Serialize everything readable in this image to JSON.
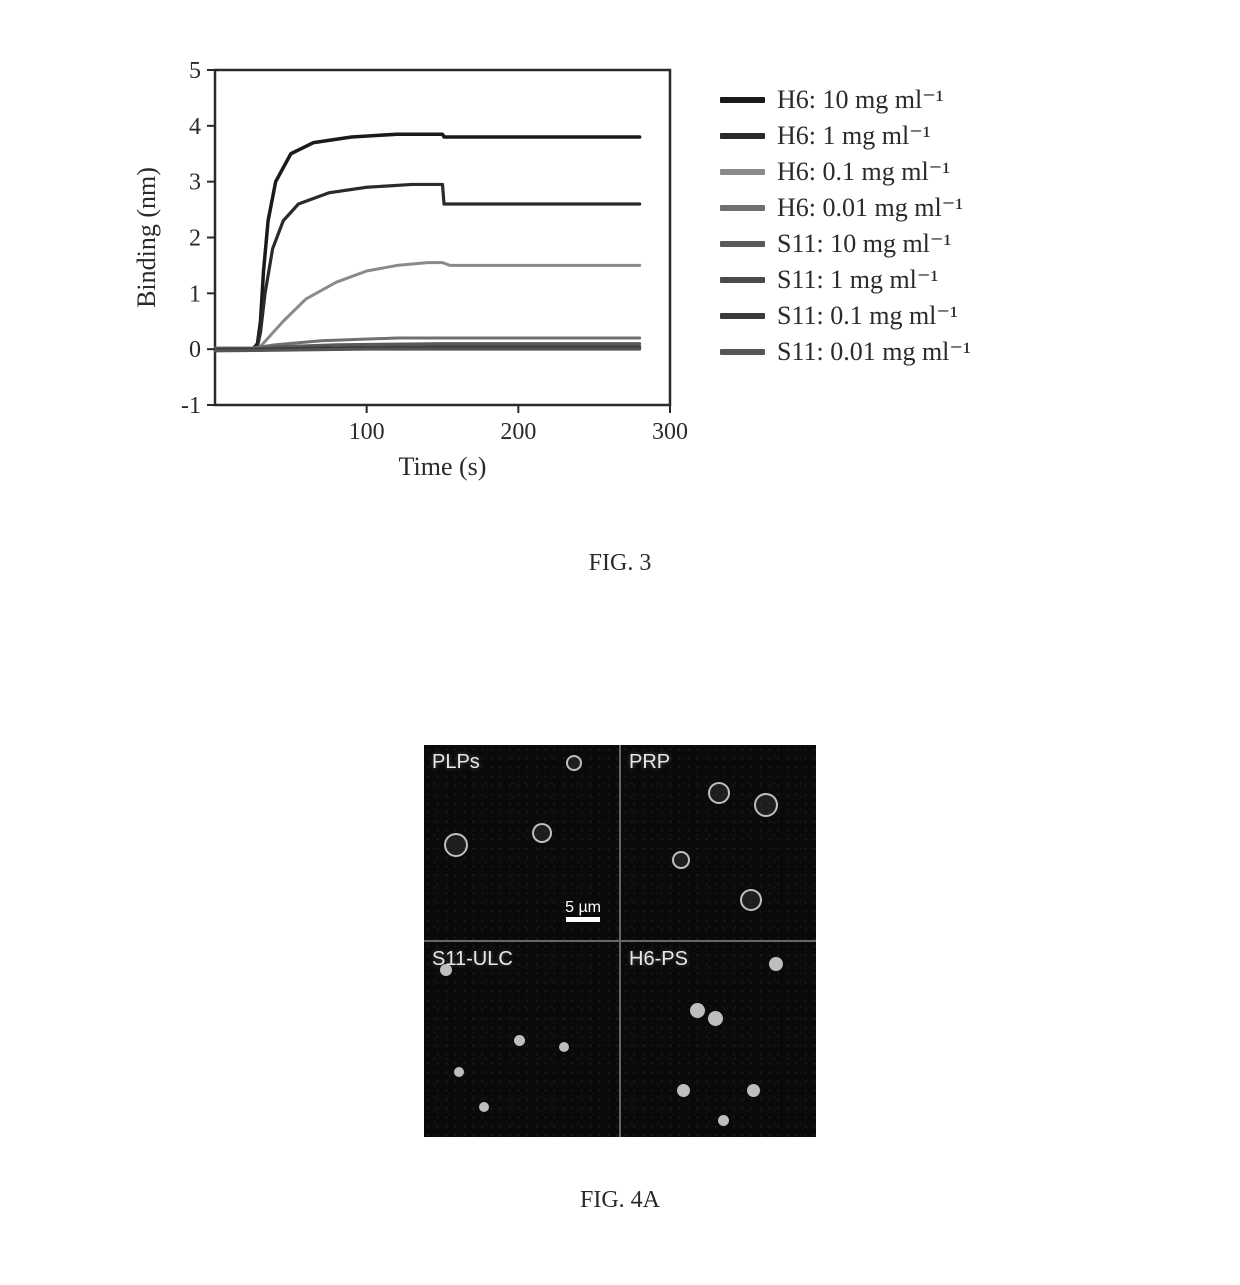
{
  "figure3": {
    "caption": "FIG. 3",
    "chart": {
      "type": "line",
      "xlabel": "Time (s)",
      "ylabel": "Binding (nm)",
      "xlim": [
        0,
        300
      ],
      "ylim": [
        -1,
        5
      ],
      "xticks": [
        100,
        200,
        300
      ],
      "yticks": [
        -1,
        0,
        1,
        2,
        3,
        4,
        5
      ],
      "label_fontsize": 26,
      "tick_fontsize": 24,
      "background_color": "#ffffff",
      "axis_color": "#2a2a2a",
      "axis_width": 2.5,
      "line_width": 3,
      "series": [
        {
          "label": "H6: 10 mg ml⁻¹",
          "color": "#1a1a1a",
          "width": 3.5,
          "points": [
            [
              0,
              0
            ],
            [
              10,
              0
            ],
            [
              20,
              0
            ],
            [
              25,
              0
            ],
            [
              28,
              0.1
            ],
            [
              30,
              0.5
            ],
            [
              32,
              1.4
            ],
            [
              35,
              2.3
            ],
            [
              40,
              3.0
            ],
            [
              50,
              3.5
            ],
            [
              65,
              3.7
            ],
            [
              90,
              3.8
            ],
            [
              120,
              3.85
            ],
            [
              150,
              3.85
            ],
            [
              151,
              3.8
            ],
            [
              200,
              3.8
            ],
            [
              280,
              3.8
            ]
          ]
        },
        {
          "label": "H6: 1 mg ml⁻¹",
          "color": "#2a2a2a",
          "width": 3.2,
          "points": [
            [
              0,
              0
            ],
            [
              20,
              0
            ],
            [
              25,
              0
            ],
            [
              28,
              0.05
            ],
            [
              30,
              0.3
            ],
            [
              33,
              1.0
            ],
            [
              38,
              1.8
            ],
            [
              45,
              2.3
            ],
            [
              55,
              2.6
            ],
            [
              75,
              2.8
            ],
            [
              100,
              2.9
            ],
            [
              130,
              2.95
            ],
            [
              150,
              2.95
            ],
            [
              151,
              2.6
            ],
            [
              200,
              2.6
            ],
            [
              280,
              2.6
            ]
          ]
        },
        {
          "label": "H6: 0.1 mg ml⁻¹",
          "color": "#8a8a8a",
          "width": 3,
          "points": [
            [
              0,
              0
            ],
            [
              25,
              0
            ],
            [
              30,
              0.05
            ],
            [
              35,
              0.2
            ],
            [
              45,
              0.5
            ],
            [
              60,
              0.9
            ],
            [
              80,
              1.2
            ],
            [
              100,
              1.4
            ],
            [
              120,
              1.5
            ],
            [
              140,
              1.55
            ],
            [
              150,
              1.55
            ],
            [
              155,
              1.5
            ],
            [
              200,
              1.5
            ],
            [
              280,
              1.5
            ]
          ]
        },
        {
          "label": "H6: 0.01 mg ml⁻¹",
          "color": "#707070",
          "width": 3,
          "points": [
            [
              0,
              0.02
            ],
            [
              25,
              0.02
            ],
            [
              40,
              0.08
            ],
            [
              70,
              0.15
            ],
            [
              120,
              0.2
            ],
            [
              150,
              0.2
            ],
            [
              200,
              0.2
            ],
            [
              280,
              0.2
            ]
          ]
        },
        {
          "label": "S11: 10 mg ml⁻¹",
          "color": "#5a5a5a",
          "width": 3,
          "points": [
            [
              0,
              0
            ],
            [
              25,
              0
            ],
            [
              40,
              0.04
            ],
            [
              80,
              0.08
            ],
            [
              150,
              0.1
            ],
            [
              200,
              0.1
            ],
            [
              280,
              0.1
            ]
          ]
        },
        {
          "label": "S11: 1 mg ml⁻¹",
          "color": "#4a4a4a",
          "width": 3,
          "points": [
            [
              0,
              -0.02
            ],
            [
              30,
              -0.02
            ],
            [
              60,
              0.02
            ],
            [
              150,
              0.05
            ],
            [
              280,
              0.05
            ]
          ]
        },
        {
          "label": "S11: 0.1 mg ml⁻¹",
          "color": "#3a3a3a",
          "width": 3,
          "points": [
            [
              0,
              0
            ],
            [
              30,
              0
            ],
            [
              80,
              0.02
            ],
            [
              150,
              0.02
            ],
            [
              280,
              0.02
            ]
          ]
        },
        {
          "label": "S11: 0.01 mg ml⁻¹",
          "color": "#555555",
          "width": 3,
          "points": [
            [
              0,
              -0.03
            ],
            [
              40,
              -0.02
            ],
            [
              100,
              0
            ],
            [
              200,
              0
            ],
            [
              280,
              0
            ]
          ]
        }
      ]
    }
  },
  "figure4a": {
    "caption": "FIG. 4A",
    "panel_bg": "#0a0a0a",
    "grid_gap_color": "#666666",
    "label_color": "#e8e8e8",
    "scale_text": "5 µm",
    "scale_color": "#ffffff",
    "panels": [
      {
        "label": "PLPs",
        "type": "ring",
        "dots": [
          [
            150,
            18,
            16
          ],
          [
            32,
            100,
            24
          ],
          [
            118,
            88,
            20
          ]
        ]
      },
      {
        "label": "PRP",
        "type": "ring",
        "dots": [
          [
            98,
            48,
            22
          ],
          [
            145,
            60,
            24
          ],
          [
            60,
            115,
            18
          ],
          [
            130,
            155,
            22
          ]
        ]
      },
      {
        "label": "S11-ULC",
        "type": "filled",
        "dots": [
          [
            22,
            28,
            12
          ],
          [
            95,
            98,
            11
          ],
          [
            35,
            130,
            10
          ],
          [
            140,
            105,
            10
          ],
          [
            60,
            165,
            10
          ]
        ]
      },
      {
        "label": "H6-PS",
        "type": "filled",
        "dots": [
          [
            155,
            22,
            14
          ],
          [
            76,
            68,
            15
          ],
          [
            94,
            76,
            15
          ],
          [
            62,
            148,
            13
          ],
          [
            132,
            148,
            13
          ],
          [
            102,
            178,
            11
          ]
        ]
      }
    ]
  }
}
